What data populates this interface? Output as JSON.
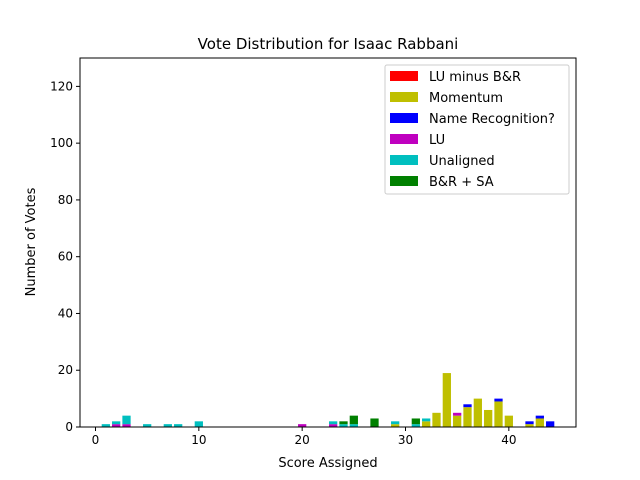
{
  "chart_data": {
    "type": "bar",
    "stacked": true,
    "title": "Vote Distribution for Isaac Rabbani",
    "xlabel": "Score Assigned",
    "ylabel": "Number of Votes",
    "xlim": [
      -1.5,
      46.5
    ],
    "ylim": [
      0,
      130
    ],
    "xticks": [
      0,
      10,
      20,
      30,
      40
    ],
    "yticks": [
      0,
      20,
      40,
      60,
      80,
      100,
      120
    ],
    "grid": false,
    "legend_position": "top-right",
    "x": [
      1,
      2,
      3,
      5,
      7,
      8,
      10,
      20,
      23,
      24,
      25,
      27,
      29,
      31,
      32,
      33,
      34,
      35,
      36,
      37,
      38,
      39,
      40,
      42,
      43,
      44
    ],
    "series": [
      {
        "name": "LU minus B&R",
        "color": "#ff0000",
        "values": [
          0,
          0,
          0,
          0,
          0,
          0,
          0,
          0,
          0,
          0,
          0,
          0,
          0,
          0,
          0,
          0,
          0,
          0,
          0,
          0,
          0,
          0,
          0,
          0,
          0,
          0
        ]
      },
      {
        "name": "Momentum",
        "color": "#bfbf00",
        "values": [
          0,
          0,
          0,
          0,
          0,
          0,
          0,
          0,
          0,
          0,
          0,
          0,
          1,
          0,
          2,
          5,
          19,
          4,
          7,
          10,
          6,
          9,
          4,
          1,
          3,
          0
        ]
      },
      {
        "name": "Name Recognition?",
        "color": "#0000ff",
        "values": [
          0,
          0,
          0,
          0,
          0,
          0,
          0,
          0,
          0,
          0,
          0,
          0,
          0,
          0,
          0,
          0,
          0,
          0,
          1,
          0,
          0,
          1,
          0,
          1,
          1,
          2
        ]
      },
      {
        "name": "LU",
        "color": "#bf00bf",
        "values": [
          0,
          1,
          1,
          0,
          0,
          0,
          0,
          1,
          1,
          0,
          0,
          0,
          0,
          0,
          0,
          0,
          0,
          1,
          0,
          0,
          0,
          0,
          0,
          0,
          0,
          0
        ]
      },
      {
        "name": "Unaligned",
        "color": "#00bfbf",
        "values": [
          1,
          1,
          3,
          1,
          1,
          1,
          2,
          0,
          1,
          1,
          1,
          0,
          1,
          1,
          1,
          0,
          0,
          0,
          0,
          0,
          0,
          0,
          0,
          0,
          0,
          0
        ]
      },
      {
        "name": "B&R + SA",
        "color": "#008000",
        "values": [
          0,
          0,
          0,
          0,
          0,
          0,
          0,
          0,
          0,
          1,
          3,
          3,
          0,
          2,
          0,
          0,
          0,
          0,
          0,
          0,
          0,
          0,
          0,
          0,
          0,
          0
        ]
      }
    ]
  }
}
